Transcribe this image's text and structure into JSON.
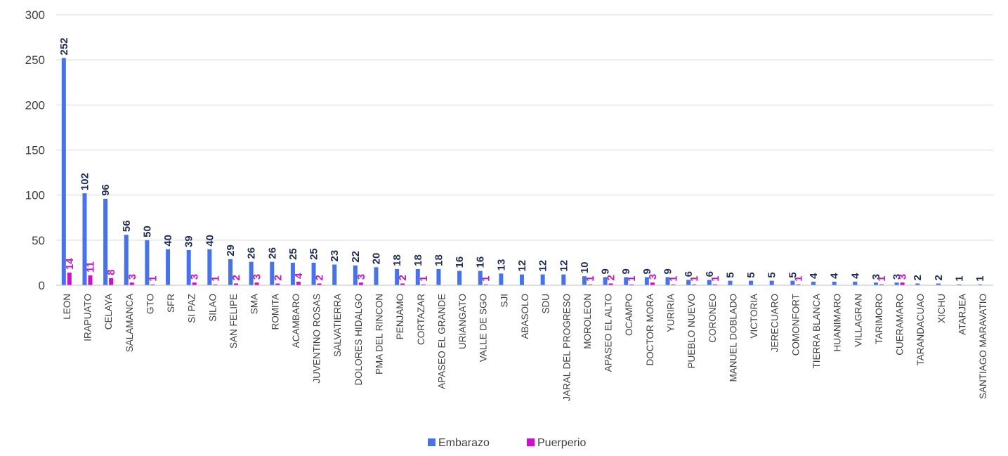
{
  "chart_data": {
    "type": "bar",
    "categories": [
      "LEON",
      "IRAPUATO",
      "CELAYA",
      "SALAMANCA",
      "GTO",
      "SFR",
      "SI PAZ",
      "SILAO",
      "SAN FELIPE",
      "SMA",
      "ROMITA",
      "ACAMBARO",
      "JUVENTINO ROSAS",
      "SALVATIERRA",
      "DOLORES HIDALGO",
      "PMA DEL RINCON",
      "PENJAMO",
      "CORTAZAR",
      "APASEO EL GRANDE",
      "URIANGATO",
      "VALLE DE SGO",
      "SJI",
      "ABASOLO",
      "SDU",
      "JARAL DEL PROGRESO",
      "MOROLEON",
      "APASEO EL ALTO",
      "OCAMPO",
      "DOCTOR MORA",
      "YURIRIA",
      "PUEBLO NUEVO",
      "CORONEO",
      "MANUEL DOBLADO",
      "VICTORIA",
      "JERECUARO",
      "COMONFORT",
      "TIERRA BLANCA",
      "HUANIMARO",
      "VILLAGRAN",
      "TARIMORO",
      "CUERAMARO",
      "TARANDACUAO",
      "XICHU",
      "ATARJEA",
      "SANTIAGO MARAVATIO"
    ],
    "series": [
      {
        "name": "Embarazo",
        "color": "#4472F0",
        "label_color": "#1F2D5A",
        "values": [
          252,
          102,
          96,
          56,
          50,
          40,
          39,
          40,
          29,
          26,
          26,
          25,
          25,
          23,
          22,
          20,
          18,
          18,
          18,
          16,
          16,
          13,
          12,
          12,
          12,
          10,
          9,
          9,
          9,
          9,
          6,
          6,
          5,
          5,
          5,
          5,
          4,
          4,
          4,
          3,
          3,
          2,
          2,
          1,
          1
        ]
      },
      {
        "name": "Puerperio",
        "color": "#CC11CC",
        "label_color": "#CC11CC",
        "values": [
          14,
          11,
          8,
          3,
          1,
          null,
          3,
          1,
          2,
          3,
          2,
          4,
          2,
          null,
          3,
          null,
          2,
          1,
          null,
          null,
          1,
          null,
          null,
          null,
          null,
          1,
          2,
          1,
          3,
          1,
          1,
          1,
          null,
          null,
          null,
          1,
          null,
          null,
          null,
          1,
          3,
          null,
          null,
          null,
          null
        ]
      }
    ],
    "yticks": [
      "0",
      "50",
      "100",
      "150",
      "200",
      "250",
      "300"
    ],
    "ylim": [
      0,
      300
    ],
    "grid": true,
    "legend_position": "bottom"
  }
}
